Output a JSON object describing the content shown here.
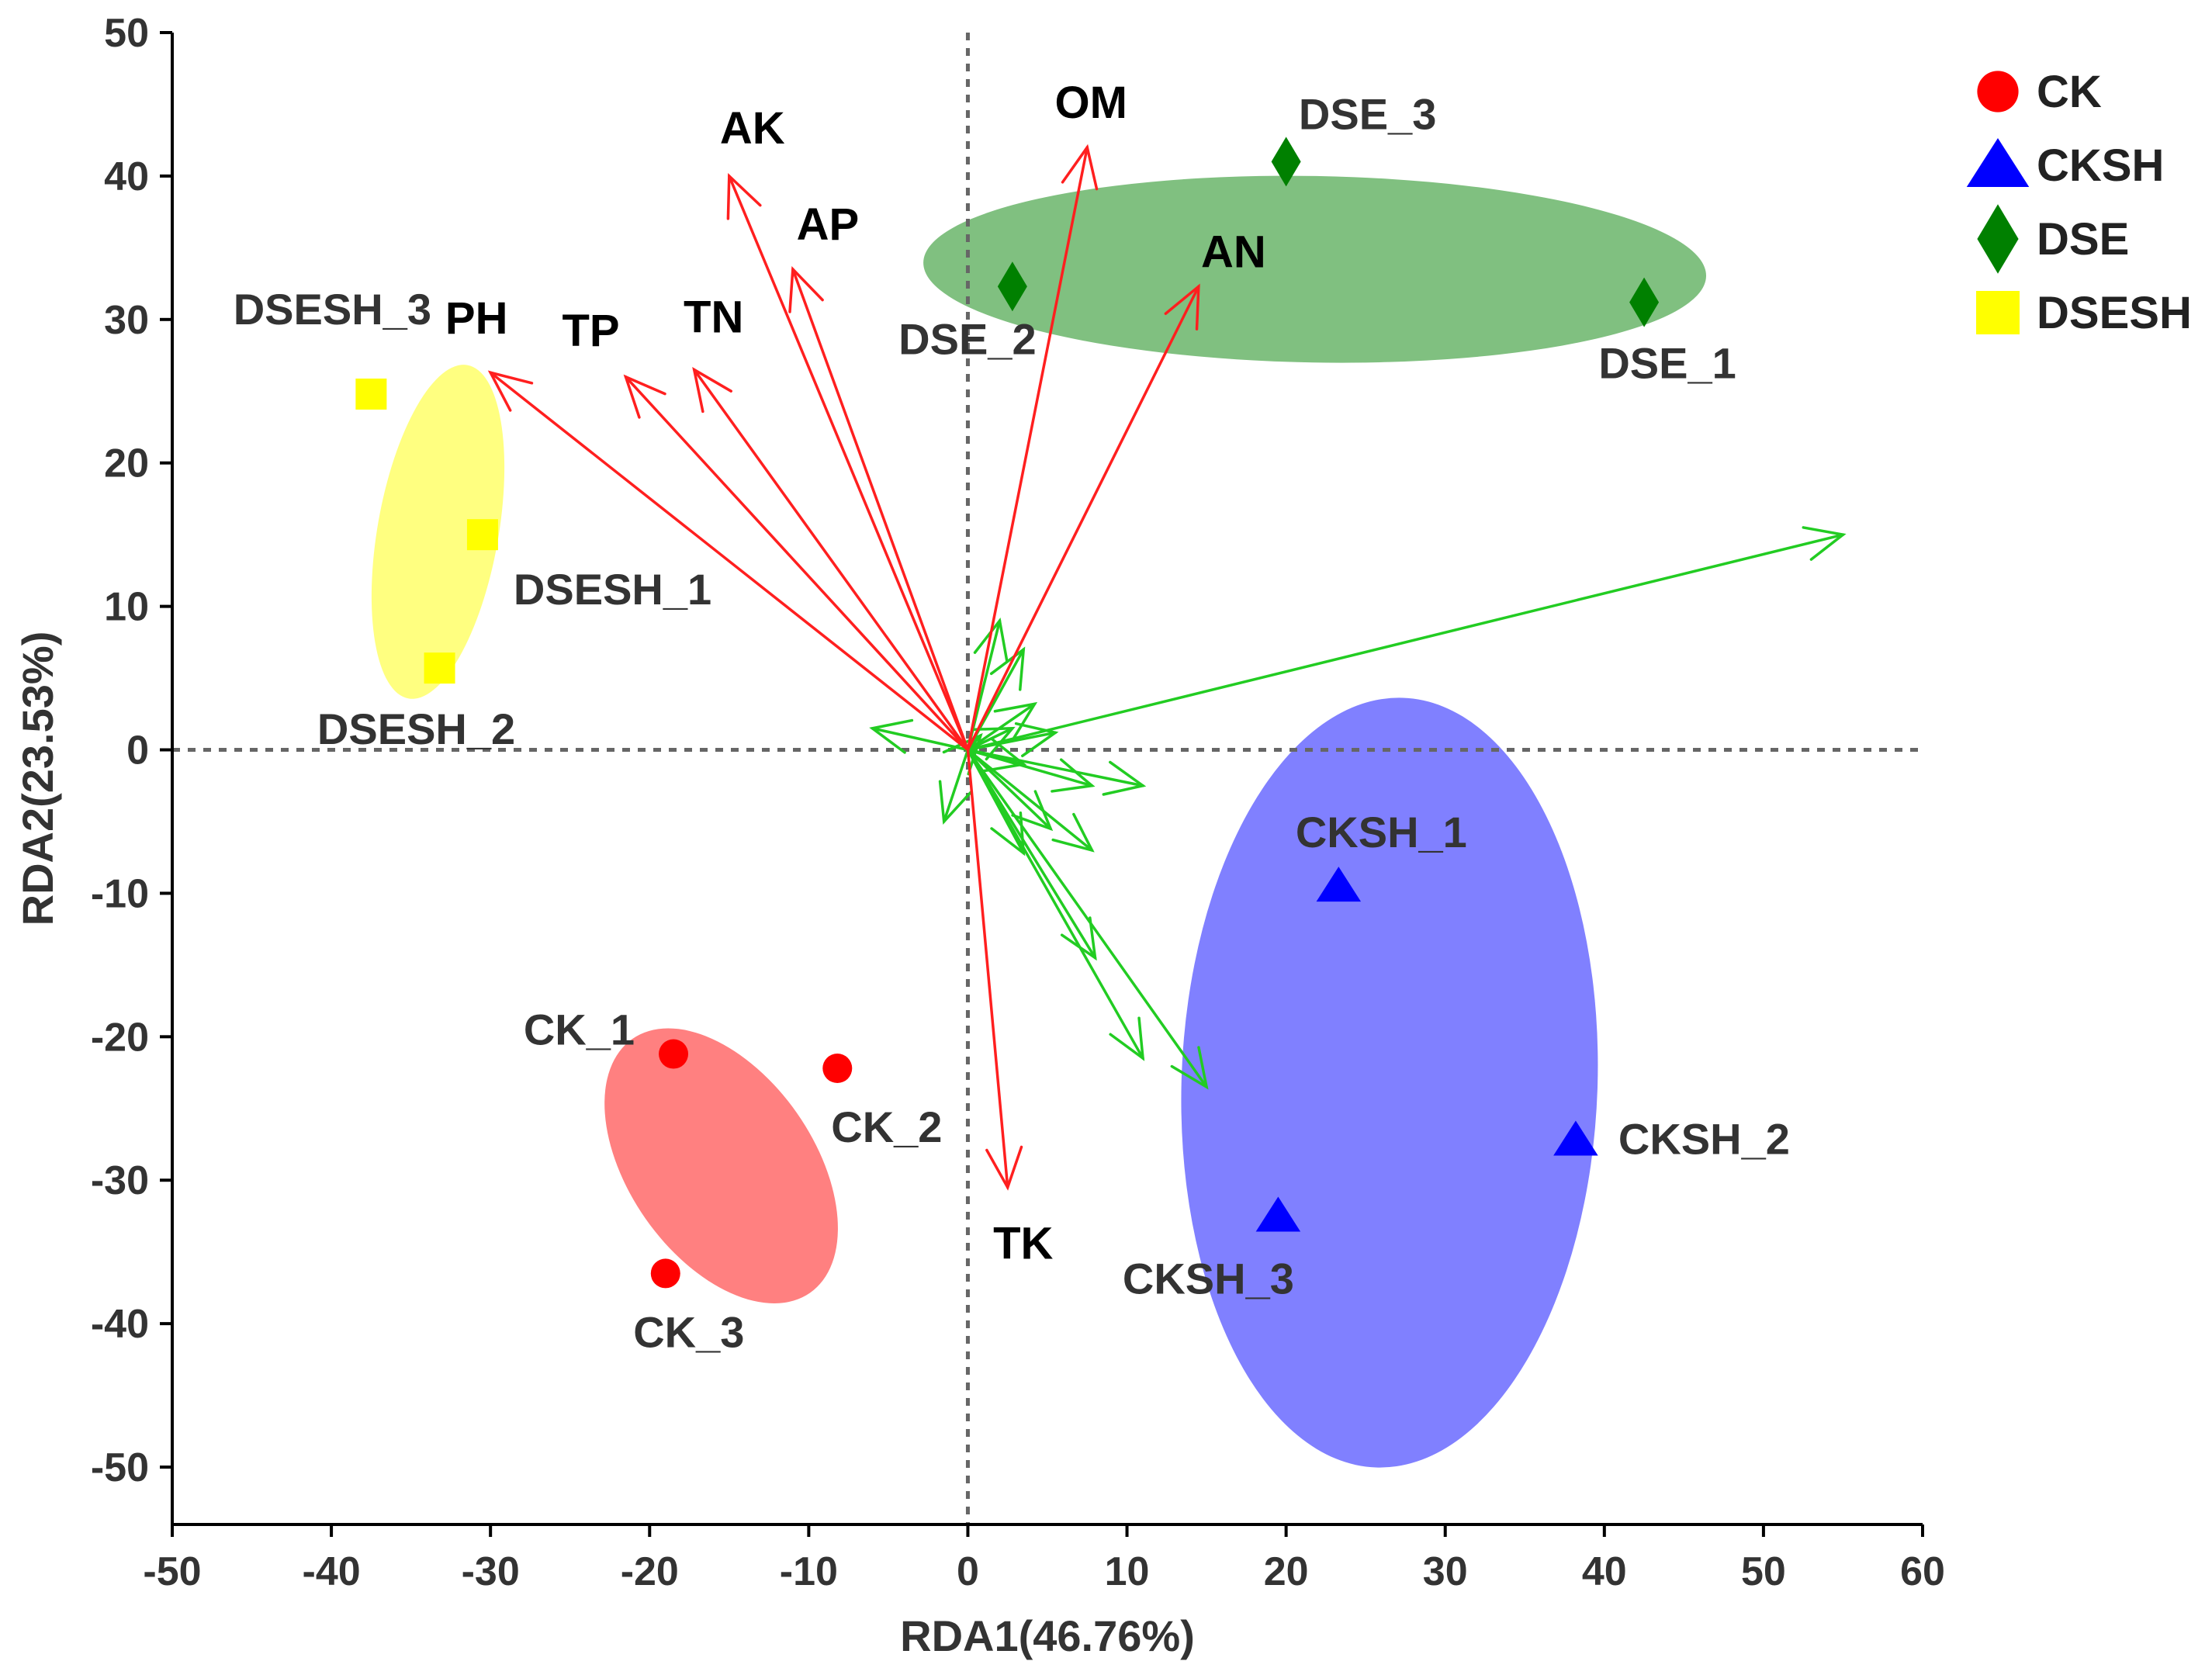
{
  "chart_data": {
    "type": "scatter",
    "title": "",
    "xlabel": "RDA1(46.76%)",
    "ylabel": "RDA2(23.53%)",
    "xlim": [
      -50,
      60
    ],
    "ylim": [
      -54,
      50
    ],
    "xticks": [
      -50,
      -40,
      -30,
      -20,
      -10,
      0,
      10,
      20,
      30,
      40,
      50,
      60
    ],
    "yticks": [
      -50,
      -40,
      -30,
      -20,
      -10,
      0,
      10,
      20,
      30,
      40,
      50
    ],
    "xtick_labels": [
      "-50",
      "-40",
      "-30",
      "-20",
      "-10",
      "0",
      "10",
      "20",
      "30",
      "40",
      "50",
      "60"
    ],
    "ytick_labels": [
      "-50",
      "-40",
      "-30",
      "-20",
      "-10",
      "0",
      "10",
      "20",
      "30",
      "40",
      "50"
    ],
    "zero_lines": true,
    "legend_position": "top-right",
    "groups": [
      {
        "name": "CK",
        "marker": "circle",
        "color": "#ff0000",
        "ellipse_color": "#ff8080",
        "ellipse": {
          "cx": -15.5,
          "cy": -29,
          "rx": 5.8,
          "ry": 10.8,
          "angle_deg": 35
        },
        "points": [
          {
            "label": "CK_1",
            "x": -18.5,
            "y": -21.2
          },
          {
            "label": "CK_2",
            "x": -8.2,
            "y": -22.2
          },
          {
            "label": "CK_3",
            "x": -19.0,
            "y": -36.5
          }
        ]
      },
      {
        "name": "CKSH",
        "marker": "triangle",
        "color": "#0000ff",
        "ellipse_color": "#8080ff",
        "ellipse": {
          "cx": 26.5,
          "cy": -23.2,
          "rx": 24.2,
          "ry": 14.5,
          "angle_deg": 88
        },
        "points": [
          {
            "label": "CKSH_1",
            "x": 23.3,
            "y": -9.5
          },
          {
            "label": "CKSH_2",
            "x": 38.2,
            "y": -27.2
          },
          {
            "label": "CKSH_3",
            "x": 19.5,
            "y": -32.5
          }
        ]
      },
      {
        "name": "DSE",
        "marker": "diamond",
        "color": "#008000",
        "ellipse_color": "#80c080",
        "ellipse": {
          "cx": 21.8,
          "cy": 33.5,
          "rx": 24.6,
          "ry": 6.5,
          "angle_deg": -1
        },
        "points": [
          {
            "label": "DSE_1",
            "x": 42.5,
            "y": 31.2
          },
          {
            "label": "DSE_2",
            "x": 2.8,
            "y": 32.3
          },
          {
            "label": "DSE_3",
            "x": 20.0,
            "y": 41.0
          }
        ]
      },
      {
        "name": "DSESH",
        "marker": "square",
        "color": "#ffff00",
        "ellipse_color": "#ffff80",
        "ellipse": {
          "cx": -33.3,
          "cy": 15.2,
          "rx": 3.8,
          "ry": 11.8,
          "angle_deg": -10
        },
        "points": [
          {
            "label": "DSESH_1",
            "x": -30.5,
            "y": 15.0
          },
          {
            "label": "DSESH_2",
            "x": -33.2,
            "y": 5.7
          },
          {
            "label": "DSESH_3",
            "x": -37.5,
            "y": 24.8
          }
        ]
      }
    ],
    "env_vectors": [
      {
        "label": "PH",
        "x": -30.0,
        "y": 26.3
      },
      {
        "label": "TP",
        "x": -21.5,
        "y": 26.0
      },
      {
        "label": "TN",
        "x": -17.2,
        "y": 26.5
      },
      {
        "label": "AK",
        "x": -15.0,
        "y": 40.0
      },
      {
        "label": "AP",
        "x": -11.0,
        "y": 33.5
      },
      {
        "label": "OM",
        "x": 7.5,
        "y": 42.0
      },
      {
        "label": "AN",
        "x": 14.5,
        "y": 32.3
      },
      {
        "label": "TK",
        "x": 2.5,
        "y": -30.5
      }
    ],
    "species_vectors": [
      {
        "x": 55.0,
        "y": 15.0
      },
      {
        "x": 15.0,
        "y": -23.5
      },
      {
        "x": 11.0,
        "y": -21.5
      },
      {
        "x": 8.0,
        "y": -14.5
      },
      {
        "x": 7.8,
        "y": -7.0
      },
      {
        "x": 11.0,
        "y": -2.5
      },
      {
        "x": 7.8,
        "y": -2.5
      },
      {
        "x": 5.2,
        "y": -5.5
      },
      {
        "x": 3.5,
        "y": -7.2
      },
      {
        "x": 3.5,
        "y": 7.0
      },
      {
        "x": 2.0,
        "y": 9.0
      },
      {
        "x": 4.2,
        "y": 3.2
      },
      {
        "x": 2.8,
        "y": 1.5
      },
      {
        "x": 3.5,
        "y": -1.0
      },
      {
        "x": -6.0,
        "y": 1.5
      },
      {
        "x": -1.5,
        "y": -5.0
      },
      {
        "x": 0.8,
        "y": 1.0
      },
      {
        "x": 5.5,
        "y": 1.2
      }
    ]
  }
}
